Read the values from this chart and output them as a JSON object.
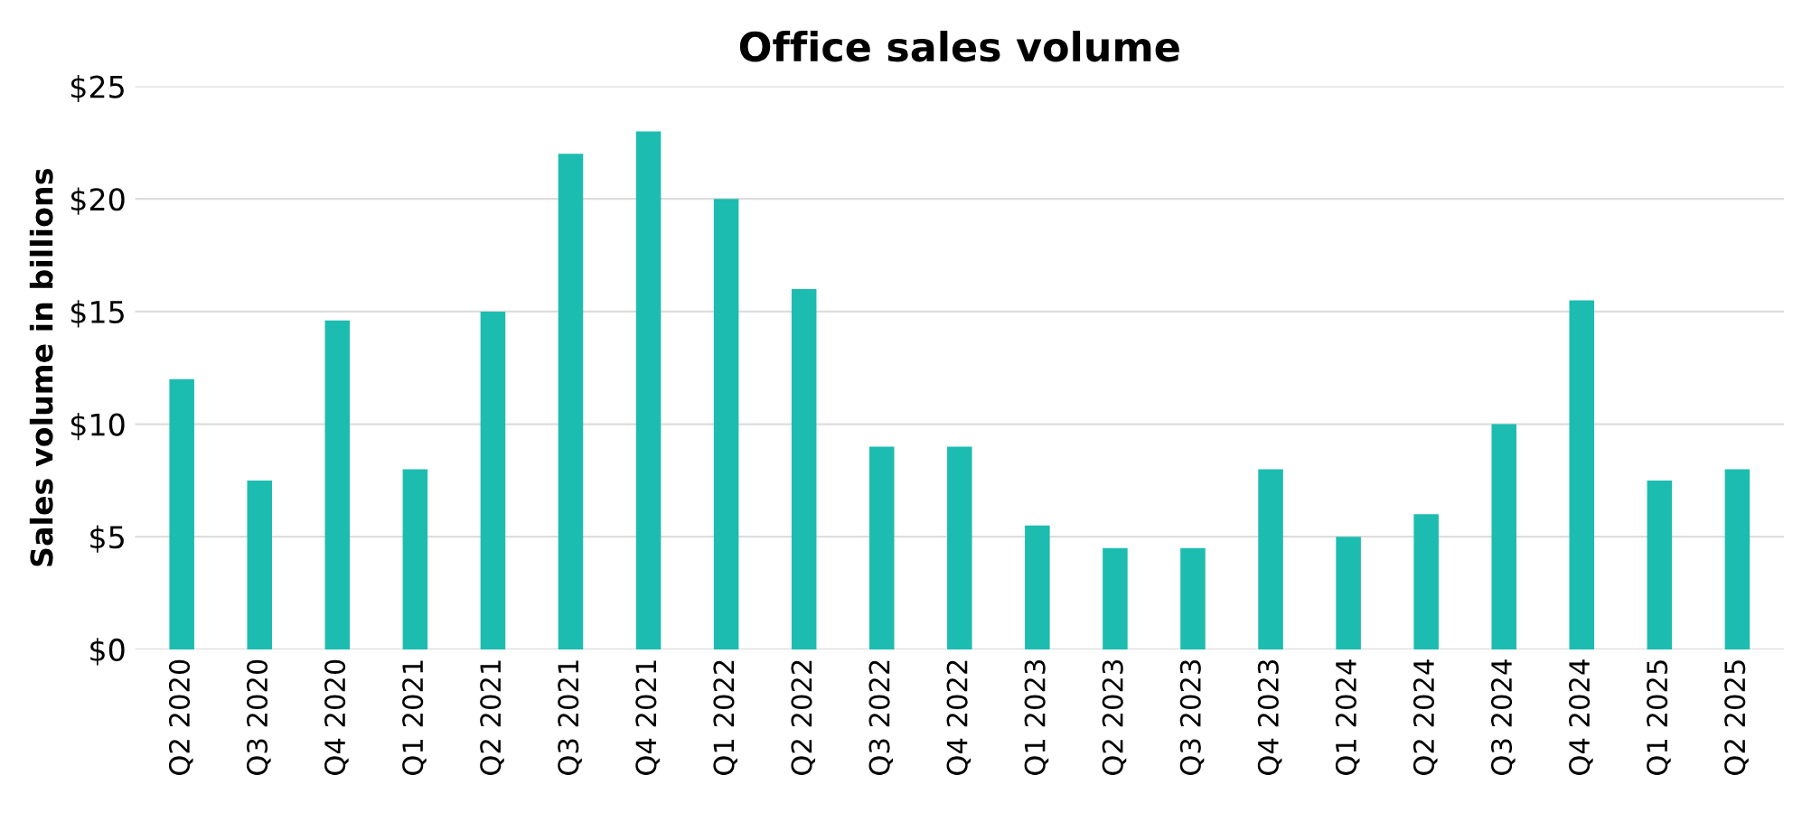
{
  "chart_data": {
    "type": "bar",
    "title": "Office sales volume",
    "ylabel": "Sales volume in billions",
    "categories": [
      "Q2 2020",
      "Q3 2020",
      "Q4 2020",
      "Q1 2021",
      "Q2 2021",
      "Q3 2021",
      "Q4 2021",
      "Q1 2022",
      "Q2 2022",
      "Q3 2022",
      "Q4 2022",
      "Q1 2023",
      "Q2 2023",
      "Q3 2023",
      "Q4 2023",
      "Q1 2024",
      "Q2 2024",
      "Q3 2024",
      "Q4 2024",
      "Q1 2025",
      "Q2 2025"
    ],
    "values": [
      12,
      7.5,
      14.6,
      8,
      15,
      22,
      23,
      20,
      16,
      9,
      9,
      5.5,
      4.5,
      4.5,
      8,
      5,
      6,
      10,
      15.5,
      7.5,
      8
    ],
    "color": "#1dbcb0",
    "ylim": [
      0,
      25
    ],
    "yticks": [
      {
        "value": 0,
        "label": "$0"
      },
      {
        "value": 5,
        "label": "$5"
      },
      {
        "value": 10,
        "label": "$10"
      },
      {
        "value": 15,
        "label": "$15"
      },
      {
        "value": 20,
        "label": "$20"
      },
      {
        "value": 25,
        "label": "$25"
      }
    ],
    "grid": "y",
    "legend": false
  }
}
